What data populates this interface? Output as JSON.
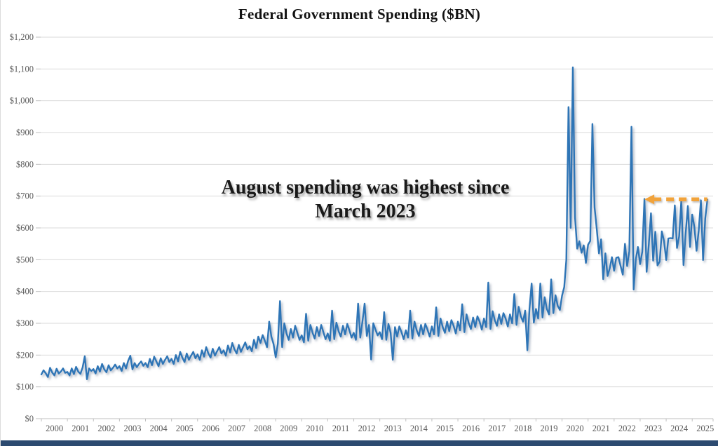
{
  "title": "Federal Government Spending ($BN)",
  "annotation": {
    "line1": "August spending was highest since",
    "line2": "March 2023"
  },
  "colors": {
    "line": "#2e75b6",
    "line_shadow": "#7a8aa0",
    "arrow": "#f1a33b",
    "grid": "#d9d9d9",
    "axis_line": "#bfbfbf",
    "axis_text": "#595959",
    "title_text": "#121212",
    "footer_bar": "#2c4a70",
    "background": "#ffffff"
  },
  "y_axis": {
    "tick_labels": [
      "$0",
      "$100",
      "$200",
      "$300",
      "$400",
      "$500",
      "$600",
      "$700",
      "$800",
      "$900",
      "$1,000",
      "$1,100",
      "$1,200"
    ],
    "tick_values": [
      0,
      100,
      200,
      300,
      400,
      500,
      600,
      700,
      800,
      900,
      1000,
      1100,
      1200
    ]
  },
  "x_axis": {
    "year_labels": [
      "2000",
      "2001",
      "2002",
      "2003",
      "2004",
      "2005",
      "2006",
      "2007",
      "2008",
      "2009",
      "2010",
      "2011",
      "2012",
      "2013",
      "2014",
      "2015",
      "2016",
      "2017",
      "2018",
      "2019",
      "2020",
      "2021",
      "2022",
      "2023",
      "2024",
      "2025"
    ]
  },
  "chart_data": {
    "type": "line",
    "title": "Federal Government Spending ($BN)",
    "unit": "$BN",
    "frequency": "monthly",
    "x_start": "2000-01",
    "x_end": "2025-08",
    "ylim": [
      0,
      1200
    ],
    "y_tick_step": 100,
    "grid": "horizontal",
    "legend": "none",
    "annotation_text": "August spending was highest since March 2023",
    "arrow": {
      "style": "dashed",
      "direction": "left",
      "color": "#f1a33b",
      "y_value": 690,
      "from_month": "2025-08",
      "to_month": "2023-03"
    },
    "notable_points": {
      "2020-04": 980,
      "2020-06": 1105,
      "2021-03": 927,
      "2022-09": 918,
      "2023-03": 691,
      "2025-08": 689
    },
    "series": [
      {
        "name": "Federal Government Spending",
        "values": [
          139,
          152,
          143,
          131,
          160,
          145,
          136,
          157,
          142,
          148,
          158,
          144,
          147,
          136,
          158,
          140,
          163,
          148,
          141,
          161,
          196,
          124,
          158,
          150,
          156,
          142,
          165,
          148,
          172,
          155,
          146,
          168,
          152,
          160,
          170,
          158,
          165,
          150,
          175,
          158,
          182,
          198,
          155,
          175,
          162,
          172,
          180,
          166,
          175,
          162,
          188,
          168,
          195,
          180,
          165,
          190,
          172,
          185,
          196,
          178,
          188,
          172,
          200,
          180,
          210,
          192,
          178,
          205,
          185,
          198,
          210,
          190,
          202,
          185,
          215,
          195,
          225,
          205,
          192,
          220,
          198,
          212,
          225,
          205,
          215,
          198,
          230,
          208,
          238,
          218,
          205,
          232,
          210,
          225,
          240,
          218,
          228,
          212,
          248,
          222,
          258,
          238,
          263,
          245,
          225,
          305,
          258,
          235,
          193,
          235,
          370,
          225,
          300,
          268,
          248,
          282,
          255,
          292,
          270,
          248,
          262,
          240,
          330,
          245,
          295,
          270,
          252,
          288,
          260,
          295,
          272,
          250,
          268,
          245,
          340,
          250,
          302,
          275,
          258,
          292,
          265,
          298,
          278,
          255,
          270,
          248,
          362,
          255,
          305,
          362,
          260,
          295,
          186,
          300,
          280,
          262,
          272,
          250,
          335,
          248,
          298,
          270,
          185,
          288,
          258,
          290,
          272,
          250,
          278,
          255,
          340,
          252,
          305,
          278,
          260,
          295,
          265,
          298,
          280,
          258,
          290,
          265,
          350,
          260,
          315,
          288,
          270,
          305,
          275,
          310,
          292,
          268,
          305,
          278,
          360,
          272,
          328,
          300,
          282,
          318,
          288,
          322,
          305,
          280,
          315,
          288,
          428,
          282,
          338,
          310,
          292,
          328,
          298,
          332,
          315,
          290,
          328,
          300,
          392,
          295,
          352,
          322,
          305,
          340,
          215,
          345,
          425,
          302,
          345,
          315,
          425,
          318,
          382,
          345,
          328,
          438,
          332,
          388,
          355,
          342,
          387,
          414,
          500,
          980,
          600,
          1105,
          632,
          535,
          558,
          522,
          545,
          490,
          547,
          559,
          927,
          664,
          596,
          520,
          564,
          439,
          520,
          449,
          473,
          508,
          465,
          506,
          508,
          480,
          453,
          550,
          480,
          526,
          918,
          406,
          501,
          540,
          486,
          525,
          691,
          462,
          548,
          646,
          497,
          588,
          482,
          494,
          589,
          559,
          499,
          567,
          568,
          567,
          671,
          537,
          574,
          688,
          483,
          584,
          669,
          540,
          642,
          603,
          528,
          592,
          687,
          499,
          630,
          689
        ]
      }
    ]
  }
}
